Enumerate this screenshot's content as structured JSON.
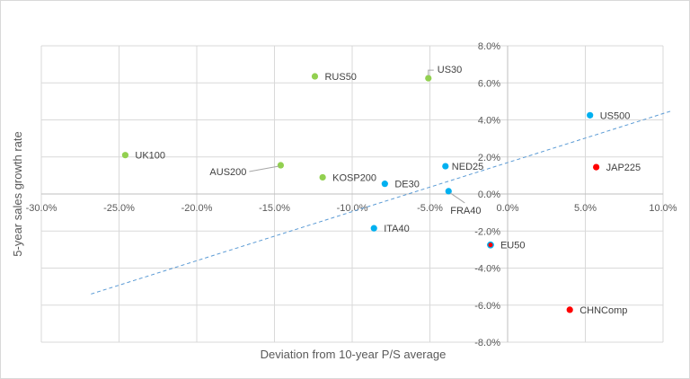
{
  "chart_data": {
    "type": "scatter",
    "title": "",
    "xlabel": "Deviation from 10-year P/S average",
    "ylabel": "5-year sales growth rate",
    "xlim": [
      -30,
      10
    ],
    "ylim": [
      -8,
      8
    ],
    "x_ticks": [
      -30,
      -25,
      -20,
      -15,
      -10,
      -5,
      0,
      5,
      10
    ],
    "y_ticks": [
      -8,
      -6,
      -4,
      -2,
      0,
      2,
      4,
      6,
      8
    ],
    "x_tick_labels": [
      "-30.0%",
      "-25.0%",
      "-20.0%",
      "-15.0%",
      "-10.0%",
      "-5.0%",
      "0.0%",
      "5.0%",
      "10.0%"
    ],
    "y_tick_labels": [
      "-8.0%",
      "-6.0%",
      "-4.0%",
      "-2.0%",
      "0.0%",
      "2.0%",
      "4.0%",
      "6.0%",
      "8.0%"
    ],
    "grid": true,
    "units": "percent",
    "colors": {
      "green": "#92d050",
      "blue": "#00b0f0",
      "red": "#ff0000",
      "trendline": "#5b9bd5",
      "grid": "#d9d9d9"
    },
    "points": [
      {
        "label": "UK100",
        "x": -24.6,
        "y": 2.1,
        "color": "green",
        "label_pos": "right"
      },
      {
        "label": "AUS200",
        "x": -14.6,
        "y": 1.55,
        "color": "green",
        "label_pos": "left-leader"
      },
      {
        "label": "RUS50",
        "x": -12.4,
        "y": 6.35,
        "color": "green",
        "label_pos": "right"
      },
      {
        "label": "KOSP200",
        "x": -11.9,
        "y": 0.9,
        "color": "green",
        "label_pos": "right"
      },
      {
        "label": "US30",
        "x": -5.1,
        "y": 6.25,
        "color": "green",
        "label_pos": "above-leader"
      },
      {
        "label": "DE30",
        "x": -7.9,
        "y": 0.55,
        "color": "blue",
        "label_pos": "right"
      },
      {
        "label": "ITA40",
        "x": -8.6,
        "y": -1.85,
        "color": "blue",
        "label_pos": "right"
      },
      {
        "label": "NED25",
        "x": -4.0,
        "y": 1.5,
        "color": "blue",
        "label_pos": "right-tight"
      },
      {
        "label": "FRA40",
        "x": -3.8,
        "y": 0.15,
        "color": "blue",
        "label_pos": "below-leader"
      },
      {
        "label": "US500",
        "x": 5.3,
        "y": 4.25,
        "color": "blue",
        "label_pos": "right"
      },
      {
        "label": "EU50",
        "x": -1.1,
        "y": -2.75,
        "color": "red",
        "outline": "blue",
        "label_pos": "right"
      },
      {
        "label": "JAP225",
        "x": 5.7,
        "y": 1.45,
        "color": "red",
        "label_pos": "right"
      },
      {
        "label": "CHNComp",
        "x": 4.0,
        "y": -6.25,
        "color": "red",
        "label_pos": "right"
      }
    ],
    "trendline": {
      "type": "linear",
      "style": "dashed",
      "x_start": -26.8,
      "y_start": -5.4,
      "x_end": 10.6,
      "y_end": 4.5
    }
  }
}
